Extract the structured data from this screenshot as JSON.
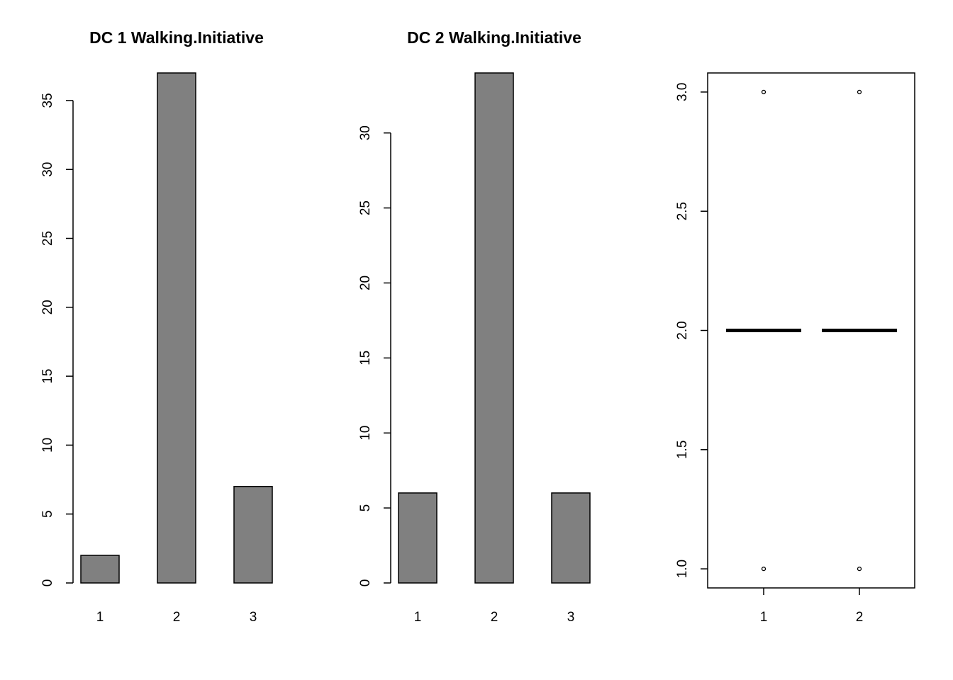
{
  "colors": {
    "background": "#ffffff",
    "bar_fill": "#808080",
    "stroke": "#000000"
  },
  "chart_data": [
    {
      "type": "bar",
      "title": "DC 1 Walking.Initiative",
      "xlabel": "",
      "ylabel": "",
      "categories": [
        "1",
        "2",
        "3"
      ],
      "values": [
        2,
        37,
        7
      ],
      "ylim": [
        0,
        37
      ],
      "yticks": [
        0,
        5,
        10,
        15,
        20,
        25,
        30,
        35
      ],
      "ytick_labels": [
        "0",
        "5",
        "10",
        "15",
        "20",
        "25",
        "30",
        "35"
      ],
      "grid": false
    },
    {
      "type": "bar",
      "title": "DC 2 Walking.Initiative",
      "xlabel": "",
      "ylabel": "",
      "categories": [
        "1",
        "2",
        "3"
      ],
      "values": [
        6,
        34,
        6
      ],
      "ylim": [
        0,
        34
      ],
      "yticks": [
        0,
        5,
        10,
        15,
        20,
        25,
        30
      ],
      "ytick_labels": [
        "0",
        "5",
        "10",
        "15",
        "20",
        "25",
        "30"
      ],
      "grid": false
    },
    {
      "type": "boxplot",
      "title": "",
      "xlabel": "",
      "ylabel": "",
      "categories": [
        "1",
        "2"
      ],
      "series": [
        {
          "median": 2.0,
          "q1": 2.0,
          "q3": 2.0,
          "whisker_low": 2.0,
          "whisker_high": 2.0,
          "outliers": [
            1.0,
            3.0
          ]
        },
        {
          "median": 2.0,
          "q1": 2.0,
          "q3": 2.0,
          "whisker_low": 2.0,
          "whisker_high": 2.0,
          "outliers": [
            1.0,
            3.0
          ]
        }
      ],
      "ylim": [
        0.92,
        3.08
      ],
      "yticks": [
        1.0,
        1.5,
        2.0,
        2.5,
        3.0
      ],
      "ytick_labels": [
        "1.0",
        "1.5",
        "2.0",
        "2.5",
        "3.0"
      ],
      "boxed": true,
      "grid": false
    }
  ]
}
